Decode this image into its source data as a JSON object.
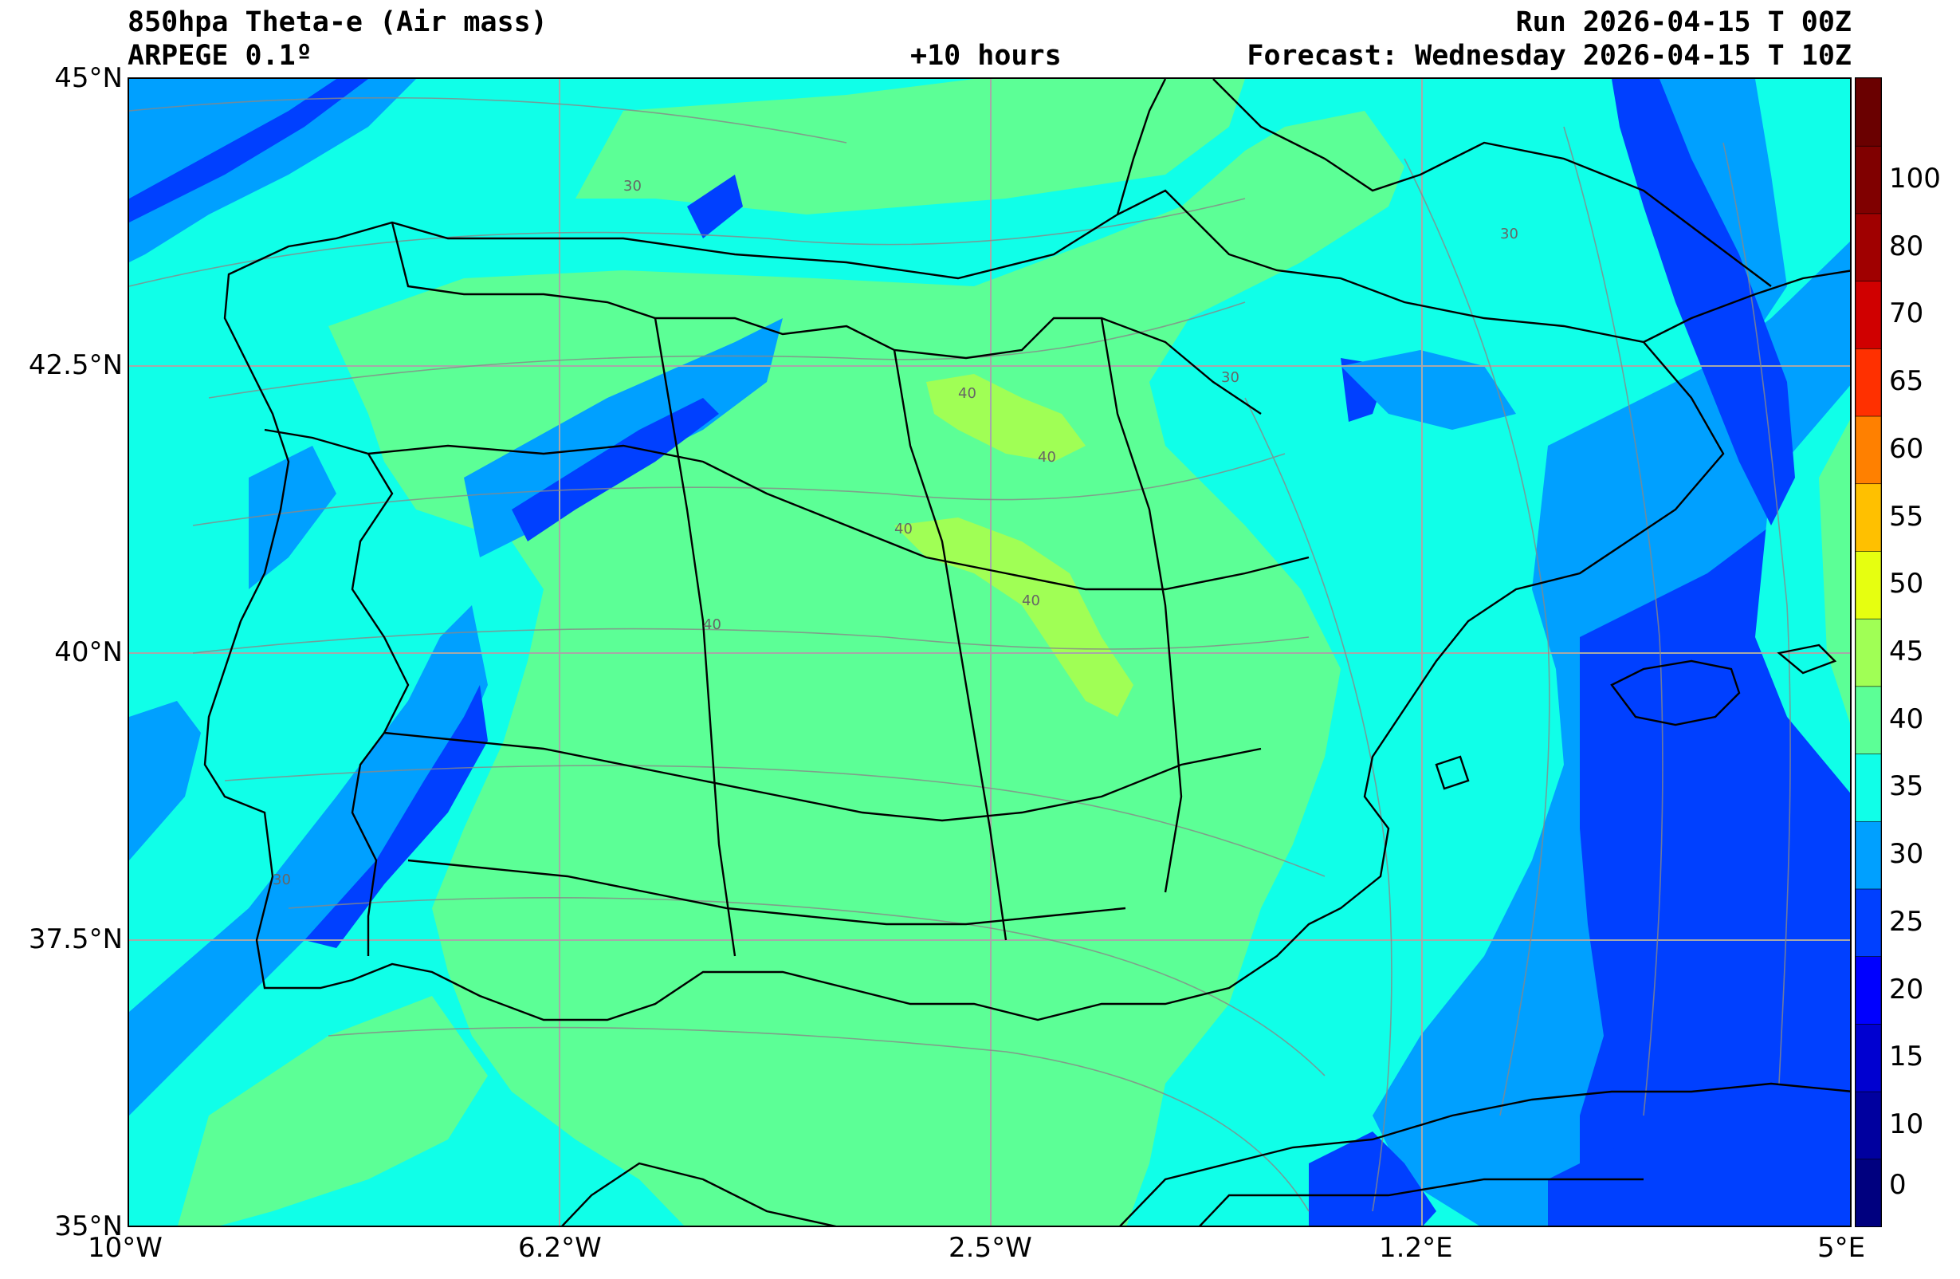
{
  "header": {
    "title_left": "850hpa Theta-e (Air mass)",
    "subtitle_left": "ARPEGE 0.1º",
    "lead_time": "+10 hours",
    "run": "Run 2026-04-15 T 00Z",
    "forecast": "Forecast: Wednesday 2026-04-15 T 10Z"
  },
  "axes": {
    "lat_labels": [
      "45°N",
      "42.5°N",
      "40°N",
      "37.5°N",
      "35°N"
    ],
    "lon_labels": [
      "10°W",
      "6.2°W",
      "2.5°W",
      "1.2°E",
      "5°E"
    ]
  },
  "map": {
    "lon_range": [
      -10,
      5
    ],
    "lat_range": [
      35,
      45
    ],
    "contour_label": "40",
    "contour_label_30": "30"
  },
  "colorbar": {
    "ticks": [
      "0",
      "10",
      "15",
      "20",
      "25",
      "30",
      "35",
      "40",
      "45",
      "50",
      "55",
      "60",
      "65",
      "70",
      "80",
      "100"
    ],
    "colors": [
      "#00007f",
      "#00009f",
      "#0000d0",
      "#0000ff",
      "#0040ff",
      "#00a0ff",
      "#10ffe8",
      "#5cff96",
      "#a0ff55",
      "#e6ff10",
      "#ffc000",
      "#ff8000",
      "#ff3000",
      "#d00000",
      "#a00000",
      "#800000",
      "#6a0000"
    ]
  },
  "colors": {
    "theta_20_25": "#0040ff",
    "theta_25_30": "#00a0ff",
    "theta_30_35": "#10ffe8",
    "theta_35_40": "#5cff96",
    "theta_40_45": "#a0ff55",
    "border": "#000000",
    "grid": "#a8a8a8",
    "streamline": "#888888"
  }
}
